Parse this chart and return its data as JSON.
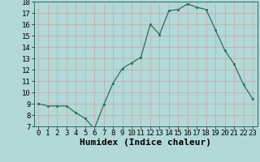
{
  "x": [
    0,
    1,
    2,
    3,
    4,
    5,
    6,
    7,
    8,
    9,
    10,
    11,
    12,
    13,
    14,
    15,
    16,
    17,
    18,
    19,
    20,
    21,
    22,
    23
  ],
  "y": [
    9.0,
    8.8,
    8.8,
    8.8,
    8.2,
    7.7,
    6.8,
    8.9,
    10.8,
    12.1,
    12.6,
    13.1,
    16.0,
    15.1,
    17.2,
    17.3,
    17.8,
    17.5,
    17.3,
    15.5,
    13.7,
    12.5,
    10.7,
    9.4
  ],
  "xlabel": "Humidex (Indice chaleur)",
  "ylim": [
    7,
    18
  ],
  "xlim": [
    -0.5,
    23.5
  ],
  "yticks": [
    7,
    8,
    9,
    10,
    11,
    12,
    13,
    14,
    15,
    16,
    17,
    18
  ],
  "xticks": [
    0,
    1,
    2,
    3,
    4,
    5,
    6,
    7,
    8,
    9,
    10,
    11,
    12,
    13,
    14,
    15,
    16,
    17,
    18,
    19,
    20,
    21,
    22,
    23
  ],
  "line_color": "#2d6e5e",
  "marker_color": "#2d6e5e",
  "bg_color": "#b2d8d8",
  "grid_color": "#c8e8e8",
  "tick_label_fontsize": 6.5,
  "xlabel_fontsize": 8,
  "marker_size": 2.0,
  "line_width": 0.9
}
